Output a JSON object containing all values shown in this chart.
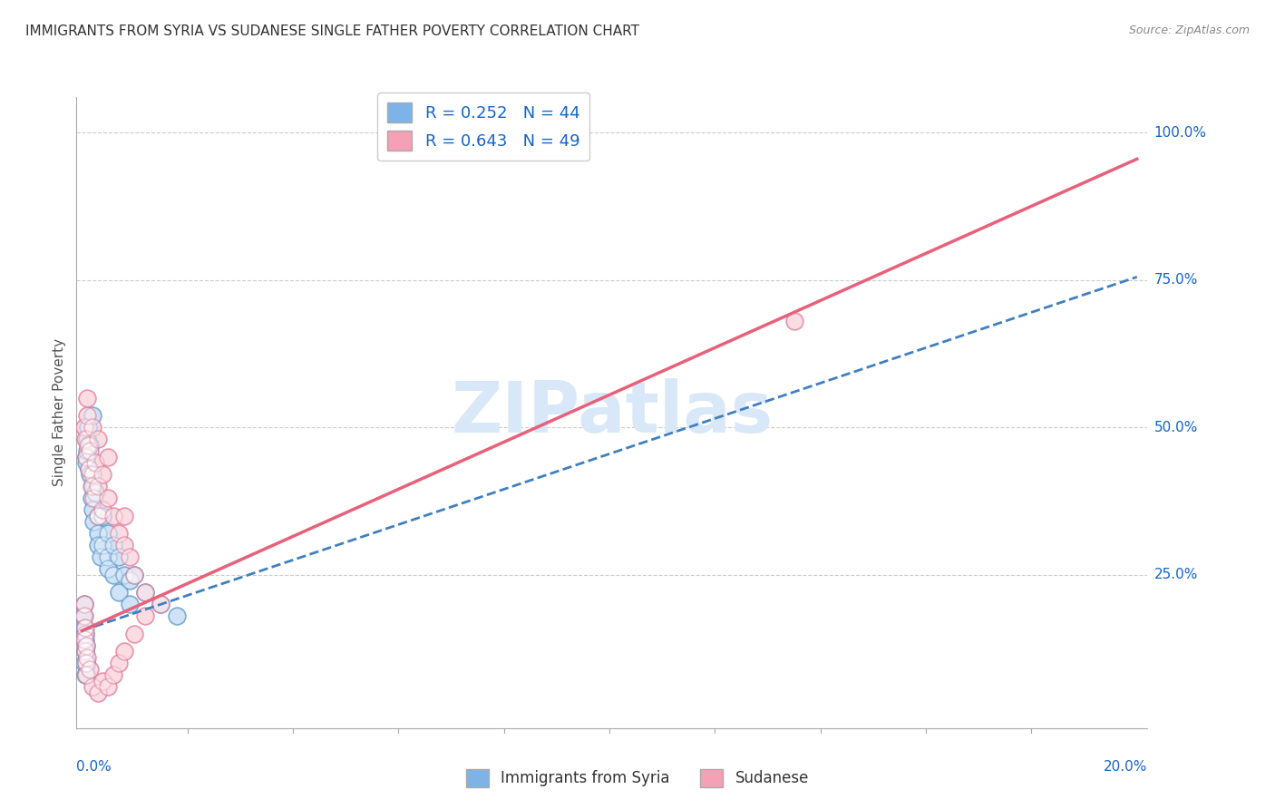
{
  "title": "IMMIGRANTS FROM SYRIA VS SUDANESE SINGLE FATHER POVERTY CORRELATION CHART",
  "source": "Source: ZipAtlas.com",
  "ylabel": "Single Father Poverty",
  "y_tick_labels": [
    "100.0%",
    "75.0%",
    "50.0%",
    "25.0%"
  ],
  "y_tick_values": [
    1.0,
    0.75,
    0.5,
    0.25
  ],
  "xlim": [
    0.0,
    0.2
  ],
  "ylim": [
    0.0,
    1.05
  ],
  "series1_name": "Immigrants from Syria",
  "series1_color": "#7EB3E8",
  "series1_edge": "#5090C8",
  "series1_line_color": "#4080C0",
  "series1_R": 0.252,
  "series1_N": 44,
  "series2_name": "Sudanese",
  "series2_color": "#F4A0B5",
  "series2_edge": "#E07090",
  "series2_line_color": "#E8607A",
  "series2_R": 0.643,
  "series2_N": 49,
  "legend_R_color": "#1464C8",
  "watermark_text": "ZIPatlas",
  "watermark_color": "#D8E8F8",
  "syria_x": [
    0.0008,
    0.0009,
    0.001,
    0.001,
    0.0012,
    0.0013,
    0.0015,
    0.0015,
    0.0018,
    0.002,
    0.002,
    0.002,
    0.0022,
    0.0025,
    0.003,
    0.003,
    0.003,
    0.0035,
    0.004,
    0.004,
    0.005,
    0.005,
    0.005,
    0.006,
    0.006,
    0.007,
    0.007,
    0.008,
    0.009,
    0.009,
    0.0003,
    0.0004,
    0.0005,
    0.0006,
    0.0007,
    0.0008,
    0.0005,
    0.0006,
    0.0007,
    0.0008,
    0.01,
    0.012,
    0.015,
    0.018
  ],
  "syria_y": [
    0.45,
    0.44,
    0.48,
    0.46,
    0.5,
    0.43,
    0.42,
    0.47,
    0.38,
    0.52,
    0.4,
    0.36,
    0.34,
    0.39,
    0.32,
    0.3,
    0.35,
    0.28,
    0.35,
    0.3,
    0.28,
    0.32,
    0.26,
    0.3,
    0.25,
    0.22,
    0.28,
    0.25,
    0.24,
    0.2,
    0.18,
    0.16,
    0.2,
    0.15,
    0.14,
    0.13,
    0.1,
    0.08,
    0.12,
    0.1,
    0.25,
    0.22,
    0.2,
    0.18
  ],
  "sudanese_x": [
    0.0005,
    0.0006,
    0.0008,
    0.001,
    0.001,
    0.0012,
    0.0013,
    0.0015,
    0.0018,
    0.002,
    0.002,
    0.0022,
    0.0025,
    0.003,
    0.003,
    0.003,
    0.004,
    0.004,
    0.005,
    0.005,
    0.006,
    0.007,
    0.008,
    0.008,
    0.009,
    0.01,
    0.012,
    0.0004,
    0.0005,
    0.0006,
    0.0007,
    0.0008,
    0.0009,
    0.0004,
    0.0006,
    0.0008,
    0.001,
    0.0015,
    0.002,
    0.003,
    0.004,
    0.005,
    0.006,
    0.007,
    0.008,
    0.01,
    0.012,
    0.015,
    0.135
  ],
  "sudanese_y": [
    0.5,
    0.48,
    0.45,
    0.55,
    0.52,
    0.47,
    0.43,
    0.46,
    0.4,
    0.5,
    0.42,
    0.38,
    0.44,
    0.48,
    0.35,
    0.4,
    0.42,
    0.36,
    0.45,
    0.38,
    0.35,
    0.32,
    0.3,
    0.35,
    0.28,
    0.25,
    0.22,
    0.2,
    0.18,
    0.15,
    0.12,
    0.1,
    0.08,
    0.14,
    0.16,
    0.13,
    0.11,
    0.09,
    0.06,
    0.05,
    0.07,
    0.06,
    0.08,
    0.1,
    0.12,
    0.15,
    0.18,
    0.2,
    0.68
  ]
}
